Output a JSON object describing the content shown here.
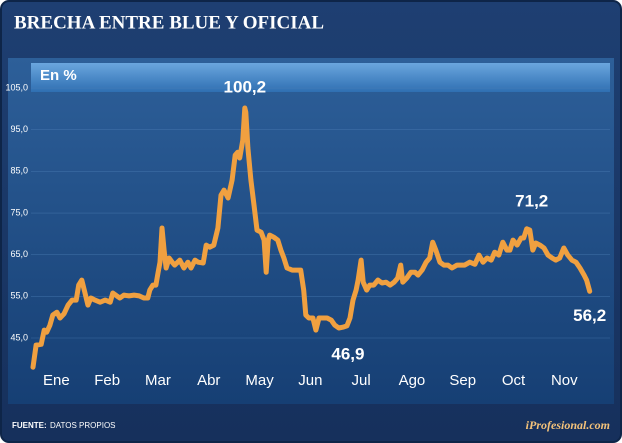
{
  "chart_data": {
    "type": "line",
    "title": "BRECHA ENTRE BLUE Y OFICIAL",
    "subtitle": "En %",
    "source_label": "FUENTE:",
    "source": "DATOS PROPIOS",
    "brand": "iProfesional.com",
    "x": [
      0.04,
      0.1,
      0.2,
      0.26,
      0.31,
      0.37,
      0.43,
      0.51,
      0.57,
      0.65,
      0.73,
      0.81,
      0.89,
      0.94,
      1.0,
      1.06,
      1.12,
      1.18,
      1.26,
      1.36,
      1.46,
      1.56,
      1.61,
      1.69,
      1.75,
      1.83,
      1.93,
      2.03,
      2.13,
      2.22,
      2.3,
      2.34,
      2.4,
      2.46,
      2.5,
      2.54,
      2.58,
      2.62,
      2.66,
      2.72,
      2.78,
      2.83,
      2.93,
      3.01,
      3.09,
      3.15,
      3.23,
      3.29,
      3.39,
      3.45,
      3.52,
      3.6,
      3.68,
      3.74,
      3.8,
      3.88,
      3.96,
      4.02,
      4.07,
      4.11,
      4.17,
      4.21,
      4.23,
      4.27,
      4.33,
      4.39,
      4.45,
      4.53,
      4.59,
      4.63,
      4.67,
      4.7,
      4.78,
      4.86,
      4.92,
      4.98,
      5.04,
      5.14,
      5.24,
      5.31,
      5.37,
      5.41,
      5.47,
      5.55,
      5.61,
      5.67,
      5.75,
      5.83,
      5.91,
      5.98,
      6.06,
      6.14,
      6.22,
      6.28,
      6.34,
      6.4,
      6.44,
      6.5,
      6.54,
      6.61,
      6.67,
      6.75,
      6.83,
      6.91,
      6.99,
      7.07,
      7.15,
      7.22,
      7.28,
      7.32,
      7.4,
      7.48,
      7.56,
      7.62,
      7.7,
      7.78,
      7.85,
      7.91,
      7.97,
      8.05,
      8.13,
      8.21,
      8.29,
      8.39,
      8.46,
      8.54,
      8.64,
      8.74,
      8.82,
      8.9,
      8.98,
      9.06,
      9.13,
      9.21,
      9.29,
      9.37,
      9.43,
      9.49,
      9.57,
      9.65,
      9.7,
      9.76,
      9.82,
      9.88,
      9.94,
      10.02,
      10.1,
      10.18,
      10.26,
      10.33,
      10.41,
      10.49,
      10.57,
      10.65,
      10.73,
      10.81,
      10.89,
      10.94,
      11.0
    ],
    "series": [
      {
        "name": "Brecha",
        "color": "#f0a040",
        "values": [
          38.0,
          43.3,
          43.5,
          46.9,
          46.4,
          48.0,
          50.5,
          51.2,
          49.8,
          50.8,
          52.9,
          54.1,
          54.1,
          57.7,
          58.9,
          56.0,
          52.9,
          54.6,
          54.1,
          53.6,
          54.1,
          53.6,
          55.8,
          55.1,
          54.6,
          55.3,
          55.1,
          55.3,
          55.1,
          54.6,
          54.6,
          56.5,
          57.7,
          57.7,
          60.6,
          63.2,
          71.4,
          66.1,
          61.8,
          64.2,
          63.2,
          62.5,
          63.7,
          61.8,
          63.2,
          61.8,
          63.7,
          63.2,
          63.0,
          67.3,
          66.8,
          67.3,
          71.4,
          79.3,
          80.5,
          78.6,
          82.9,
          88.9,
          89.6,
          88.2,
          92.5,
          100.2,
          99.2,
          90.6,
          82.9,
          76.9,
          70.9,
          70.4,
          68.5,
          60.8,
          68.5,
          69.7,
          69.2,
          68.5,
          66.1,
          64.2,
          61.8,
          61.3,
          61.3,
          61.3,
          56.5,
          50.5,
          49.8,
          49.8,
          46.9,
          49.8,
          49.8,
          49.8,
          49.3,
          48.1,
          47.4,
          47.6,
          47.9,
          49.8,
          54.1,
          56.5,
          58.9,
          63.7,
          58.4,
          56.5,
          57.7,
          57.7,
          58.9,
          58.2,
          58.4,
          57.7,
          58.4,
          59.4,
          62.5,
          58.4,
          59.4,
          60.8,
          60.8,
          60.1,
          61.3,
          63.2,
          64.2,
          68.0,
          66.1,
          63.2,
          62.5,
          62.5,
          61.8,
          62.5,
          62.5,
          62.5,
          63.2,
          62.7,
          64.9,
          63.2,
          64.2,
          63.7,
          65.6,
          64.9,
          68.0,
          66.1,
          66.1,
          68.5,
          67.3,
          69.0,
          69.0,
          71.2,
          70.9,
          66.1,
          67.8,
          67.3,
          66.6,
          64.9,
          64.2,
          63.7,
          64.2,
          66.6,
          64.9,
          63.7,
          63.2,
          61.8,
          60.1,
          58.9,
          56.2
        ]
      }
    ],
    "xlim": [
      0,
      11.4
    ],
    "xticks": [
      {
        "value": 0.5,
        "label": "Ene"
      },
      {
        "value": 1.5,
        "label": "Feb"
      },
      {
        "value": 2.5,
        "label": "Mar"
      },
      {
        "value": 3.5,
        "label": "Abr"
      },
      {
        "value": 4.5,
        "label": "May"
      },
      {
        "value": 5.5,
        "label": "Jun"
      },
      {
        "value": 6.5,
        "label": "Jul"
      },
      {
        "value": 7.5,
        "label": "Ago"
      },
      {
        "value": 8.5,
        "label": "Sep"
      },
      {
        "value": 9.5,
        "label": "Oct"
      },
      {
        "value": 10.5,
        "label": "Nov"
      }
    ],
    "ylim": [
      36,
      110
    ],
    "yticks": [
      {
        "value": 45,
        "label": "45,0"
      },
      {
        "value": 55,
        "label": "55,0"
      },
      {
        "value": 65,
        "label": "65,0"
      },
      {
        "value": 75,
        "label": "75,0"
      },
      {
        "value": 85,
        "label": "85,0"
      },
      {
        "value": 95,
        "label": "95,0"
      },
      {
        "value": 105,
        "label": "105,0"
      }
    ],
    "grid": true,
    "annotations": [
      {
        "text": "100,2",
        "x": 4.21,
        "y": 100.2
      },
      {
        "text": "46,9",
        "x": 5.61,
        "y": 46.9
      },
      {
        "text": "71,2",
        "x": 9.76,
        "y": 71.2
      },
      {
        "text": "56,2",
        "x": 11.0,
        "y": 56.2
      }
    ]
  }
}
